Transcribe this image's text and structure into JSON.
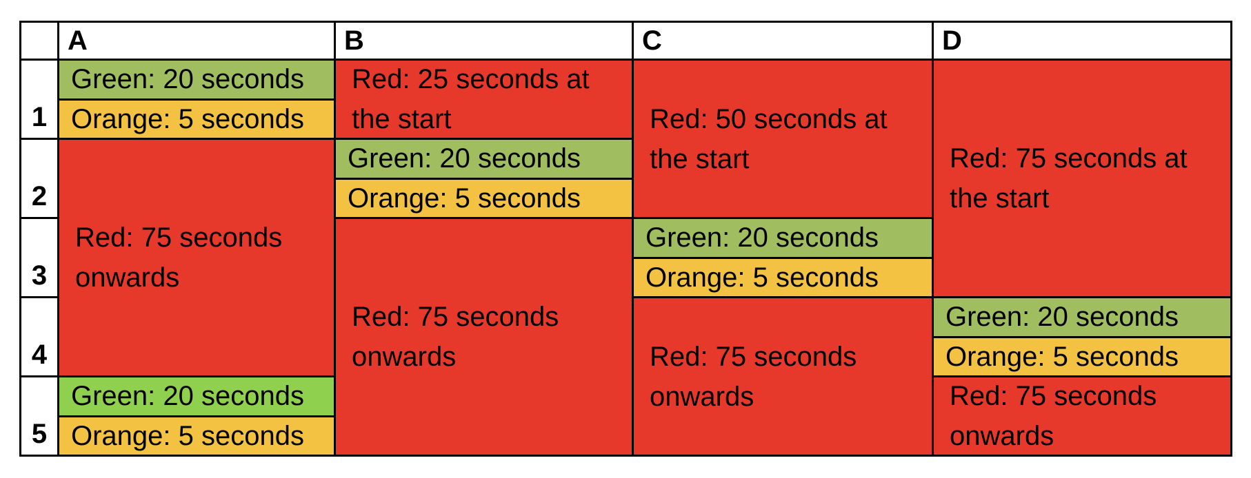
{
  "table": {
    "corner_label": "",
    "row_labels": [
      "1",
      "2",
      "3",
      "4",
      "5"
    ],
    "columns": [
      {
        "label": "A",
        "segments": [
          {
            "phase": "green",
            "text": "Green: 20 seconds"
          },
          {
            "phase": "orange",
            "text": "Orange: 5 seconds"
          },
          {
            "phase": "red",
            "text": "Red: 75 seconds\nonwards"
          },
          {
            "phase": "green_bright",
            "text": "Green: 20 seconds"
          },
          {
            "phase": "orange",
            "text": "Orange: 5 seconds"
          }
        ]
      },
      {
        "label": "B",
        "segments": [
          {
            "phase": "red",
            "text": "Red: 25 seconds at\nthe start"
          },
          {
            "phase": "green",
            "text": "Green: 20 seconds"
          },
          {
            "phase": "orange",
            "text": "Orange: 5 seconds"
          },
          {
            "phase": "red",
            "text": "Red: 75 seconds\nonwards"
          }
        ]
      },
      {
        "label": "C",
        "segments": [
          {
            "phase": "red",
            "text": "Red: 50 seconds at\nthe start"
          },
          {
            "phase": "green",
            "text": "Green: 20 seconds"
          },
          {
            "phase": "orange",
            "text": "Orange: 5 seconds"
          },
          {
            "phase": "red",
            "text": "Red: 75 seconds\nonwards"
          }
        ]
      },
      {
        "label": "D",
        "segments": [
          {
            "phase": "red",
            "text": "Red: 75 seconds at\nthe start"
          },
          {
            "phase": "green",
            "text": "Green: 20 seconds"
          },
          {
            "phase": "orange",
            "text": "Orange: 5 seconds"
          },
          {
            "phase": "red",
            "text": "Red: 75 seconds\nonwards"
          }
        ]
      }
    ],
    "colors": {
      "red": "#E7392B",
      "green": "#A0BD60",
      "green_bright": "#90D04F",
      "orange": "#F3C243",
      "grid_line": "#000000",
      "cell_background": "#FFFFFF",
      "text": "#000000"
    }
  }
}
